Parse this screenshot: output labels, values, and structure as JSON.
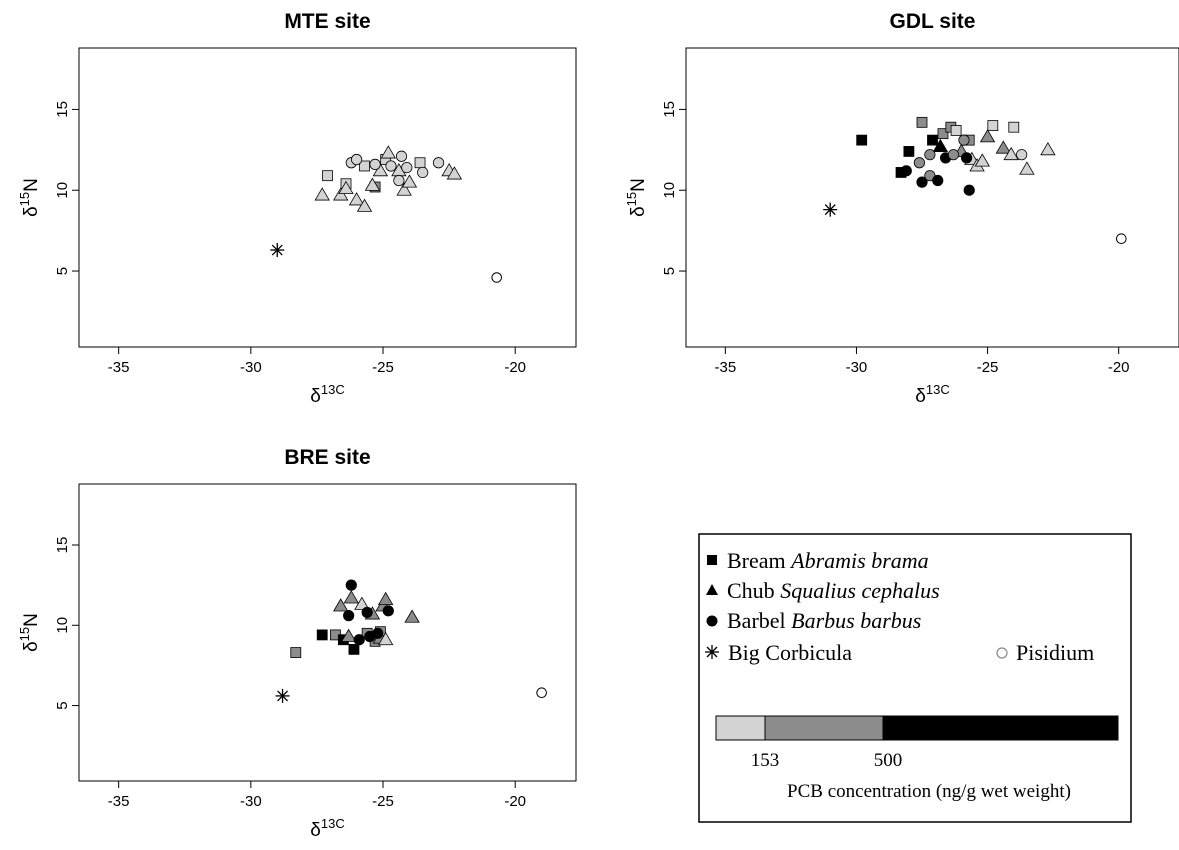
{
  "chart_data": [
    {
      "type": "scatter",
      "title": "MTE site",
      "xlabel": "δ13C",
      "ylabel": "δ15N",
      "xlim": [
        -36.5,
        -17.7
      ],
      "ylim": [
        0.3,
        18.8
      ],
      "xticks": [
        "-35",
        "-30",
        "-25",
        "-20"
      ],
      "yticks": [
        "5",
        "10",
        "15"
      ],
      "points": [
        {
          "species": "bream",
          "conc": "low",
          "x": -27.1,
          "y": 10.9
        },
        {
          "species": "bream",
          "conc": "low",
          "x": -26.4,
          "y": 10.4
        },
        {
          "species": "bream",
          "conc": "mid",
          "x": -25.3,
          "y": 10.2
        },
        {
          "species": "bream",
          "conc": "low",
          "x": -25.7,
          "y": 11.5
        },
        {
          "species": "bream",
          "conc": "low",
          "x": -24.9,
          "y": 11.9
        },
        {
          "species": "bream",
          "conc": "low",
          "x": -23.6,
          "y": 11.7
        },
        {
          "species": "chub",
          "conc": "low",
          "x": -27.3,
          "y": 9.7
        },
        {
          "species": "chub",
          "conc": "low",
          "x": -26.6,
          "y": 9.7
        },
        {
          "species": "chub",
          "conc": "low",
          "x": -26.4,
          "y": 10.1
        },
        {
          "species": "chub",
          "conc": "low",
          "x": -26.0,
          "y": 9.4
        },
        {
          "species": "chub",
          "conc": "low",
          "x": -25.7,
          "y": 9.0
        },
        {
          "species": "chub",
          "conc": "low",
          "x": -25.4,
          "y": 10.3
        },
        {
          "species": "chub",
          "conc": "low",
          "x": -25.1,
          "y": 11.2
        },
        {
          "species": "chub",
          "conc": "low",
          "x": -24.8,
          "y": 12.3
        },
        {
          "species": "chub",
          "conc": "low",
          "x": -24.4,
          "y": 11.2
        },
        {
          "species": "chub",
          "conc": "low",
          "x": -24.2,
          "y": 10.0
        },
        {
          "species": "chub",
          "conc": "low",
          "x": -24.0,
          "y": 10.5
        },
        {
          "species": "chub",
          "conc": "low",
          "x": -22.5,
          "y": 11.2
        },
        {
          "species": "chub",
          "conc": "low",
          "x": -22.3,
          "y": 11.0
        },
        {
          "species": "barbel",
          "conc": "low",
          "x": -26.2,
          "y": 11.7
        },
        {
          "species": "barbel",
          "conc": "low",
          "x": -26.0,
          "y": 11.9
        },
        {
          "species": "barbel",
          "conc": "low",
          "x": -25.3,
          "y": 11.6
        },
        {
          "species": "barbel",
          "conc": "low",
          "x": -24.7,
          "y": 11.5
        },
        {
          "species": "barbel",
          "conc": "low",
          "x": -24.4,
          "y": 10.6
        },
        {
          "species": "barbel",
          "conc": "low",
          "x": -24.3,
          "y": 12.1
        },
        {
          "species": "barbel",
          "conc": "low",
          "x": -24.1,
          "y": 11.4
        },
        {
          "species": "barbel",
          "conc": "low",
          "x": -23.5,
          "y": 11.1
        },
        {
          "species": "barbel",
          "conc": "low",
          "x": -22.9,
          "y": 11.7
        },
        {
          "species": "corbicula",
          "conc": "none",
          "x": -29.0,
          "y": 6.3
        },
        {
          "species": "pisidium",
          "conc": "none",
          "x": -20.7,
          "y": 4.6
        }
      ]
    },
    {
      "type": "scatter",
      "title": "GDL site",
      "xlabel": "δ13C",
      "ylabel": "δ15N",
      "xlim": [
        -36.5,
        -17.7
      ],
      "ylim": [
        0.3,
        18.8
      ],
      "xticks": [
        "-35",
        "-30",
        "-25",
        "-20"
      ],
      "yticks": [
        "5",
        "10",
        "15"
      ],
      "points": [
        {
          "species": "bream",
          "conc": "high",
          "x": -29.8,
          "y": 13.1
        },
        {
          "species": "bream",
          "conc": "high",
          "x": -28.0,
          "y": 12.4
        },
        {
          "species": "bream",
          "conc": "high",
          "x": -28.3,
          "y": 11.1
        },
        {
          "species": "bream",
          "conc": "mid",
          "x": -27.5,
          "y": 14.2
        },
        {
          "species": "bream",
          "conc": "high",
          "x": -27.1,
          "y": 13.1
        },
        {
          "species": "bream",
          "conc": "mid",
          "x": -26.7,
          "y": 13.5
        },
        {
          "species": "bream",
          "conc": "mid",
          "x": -26.4,
          "y": 13.9
        },
        {
          "species": "bream",
          "conc": "low",
          "x": -26.2,
          "y": 13.7
        },
        {
          "species": "bream",
          "conc": "mid",
          "x": -25.7,
          "y": 13.1
        },
        {
          "species": "bream",
          "conc": "low",
          "x": -24.8,
          "y": 14.0
        },
        {
          "species": "bream",
          "conc": "low",
          "x": -24.0,
          "y": 13.9
        },
        {
          "species": "chub",
          "conc": "high",
          "x": -26.8,
          "y": 12.7
        },
        {
          "species": "chub",
          "conc": "mid",
          "x": -26.0,
          "y": 12.4
        },
        {
          "species": "chub",
          "conc": "low",
          "x": -25.6,
          "y": 11.9
        },
        {
          "species": "chub",
          "conc": "low",
          "x": -25.4,
          "y": 11.5
        },
        {
          "species": "chub",
          "conc": "mid",
          "x": -25.0,
          "y": 13.3
        },
        {
          "species": "chub",
          "conc": "mid",
          "x": -24.4,
          "y": 12.6
        },
        {
          "species": "chub",
          "conc": "low",
          "x": -24.1,
          "y": 12.2
        },
        {
          "species": "chub",
          "conc": "low",
          "x": -23.5,
          "y": 11.3
        },
        {
          "species": "chub",
          "conc": "low",
          "x": -22.7,
          "y": 12.5
        },
        {
          "species": "chub",
          "conc": "low",
          "x": -25.2,
          "y": 11.8
        },
        {
          "species": "barbel",
          "conc": "high",
          "x": -28.1,
          "y": 11.2
        },
        {
          "species": "barbel",
          "conc": "mid",
          "x": -27.6,
          "y": 11.7
        },
        {
          "species": "barbel",
          "conc": "high",
          "x": -27.5,
          "y": 10.5
        },
        {
          "species": "barbel",
          "conc": "mid",
          "x": -27.2,
          "y": 12.2
        },
        {
          "species": "barbel",
          "conc": "mid",
          "x": -27.2,
          "y": 10.9
        },
        {
          "species": "barbel",
          "conc": "high",
          "x": -26.9,
          "y": 10.6
        },
        {
          "species": "barbel",
          "conc": "high",
          "x": -26.6,
          "y": 12.0
        },
        {
          "species": "barbel",
          "conc": "mid",
          "x": -26.3,
          "y": 12.2
        },
        {
          "species": "barbel",
          "conc": "high",
          "x": -25.8,
          "y": 12.0
        },
        {
          "species": "barbel",
          "conc": "high",
          "x": -25.7,
          "y": 10.0
        },
        {
          "species": "barbel",
          "conc": "mid",
          "x": -25.9,
          "y": 13.1
        },
        {
          "species": "barbel",
          "conc": "low",
          "x": -23.7,
          "y": 12.2
        },
        {
          "species": "corbicula",
          "conc": "none",
          "x": -31.0,
          "y": 8.8
        },
        {
          "species": "pisidium",
          "conc": "none",
          "x": -19.9,
          "y": 7.0
        }
      ]
    },
    {
      "type": "scatter",
      "title": "BRE site",
      "xlabel": "δ13C",
      "ylabel": "δ15N",
      "xlim": [
        -36.5,
        -17.7
      ],
      "ylim": [
        0.3,
        18.8
      ],
      "xticks": [
        "-35",
        "-30",
        "-25",
        "-20"
      ],
      "yticks": [
        "5",
        "10",
        "15"
      ],
      "points": [
        {
          "species": "bream",
          "conc": "mid",
          "x": -28.3,
          "y": 8.3
        },
        {
          "species": "bream",
          "conc": "high",
          "x": -27.3,
          "y": 9.4
        },
        {
          "species": "bream",
          "conc": "mid",
          "x": -26.8,
          "y": 9.4
        },
        {
          "species": "bream",
          "conc": "high",
          "x": -26.5,
          "y": 9.1
        },
        {
          "species": "bream",
          "conc": "high",
          "x": -26.1,
          "y": 8.5
        },
        {
          "species": "bream",
          "conc": "mid",
          "x": -25.6,
          "y": 9.5
        },
        {
          "species": "bream",
          "conc": "mid",
          "x": -25.3,
          "y": 9.0
        },
        {
          "species": "bream",
          "conc": "mid",
          "x": -25.1,
          "y": 9.6
        },
        {
          "species": "chub",
          "conc": "mid",
          "x": -26.6,
          "y": 11.2
        },
        {
          "species": "chub",
          "conc": "mid",
          "x": -26.2,
          "y": 11.7
        },
        {
          "species": "chub",
          "conc": "low",
          "x": -25.8,
          "y": 11.3
        },
        {
          "species": "chub",
          "conc": "mid",
          "x": -25.4,
          "y": 10.7
        },
        {
          "species": "chub",
          "conc": "mid",
          "x": -25.0,
          "y": 11.2
        },
        {
          "species": "chub",
          "conc": "mid",
          "x": -24.9,
          "y": 11.6
        },
        {
          "species": "chub",
          "conc": "mid",
          "x": -25.1,
          "y": 9.2
        },
        {
          "species": "chub",
          "conc": "low",
          "x": -24.9,
          "y": 9.1
        },
        {
          "species": "chub",
          "conc": "mid",
          "x": -23.9,
          "y": 10.5
        },
        {
          "species": "chub",
          "conc": "mid",
          "x": -26.3,
          "y": 9.3
        },
        {
          "species": "barbel",
          "conc": "high",
          "x": -26.2,
          "y": 12.5
        },
        {
          "species": "barbel",
          "conc": "high",
          "x": -26.3,
          "y": 10.6
        },
        {
          "species": "barbel",
          "conc": "high",
          "x": -25.6,
          "y": 10.8
        },
        {
          "species": "barbel",
          "conc": "high",
          "x": -24.8,
          "y": 10.9
        },
        {
          "species": "barbel",
          "conc": "high",
          "x": -25.9,
          "y": 9.1
        },
        {
          "species": "barbel",
          "conc": "high",
          "x": -25.5,
          "y": 9.3
        },
        {
          "species": "barbel",
          "conc": "high",
          "x": -25.2,
          "y": 9.5
        },
        {
          "species": "corbicula",
          "conc": "none",
          "x": -28.8,
          "y": 5.6
        },
        {
          "species": "pisidium",
          "conc": "none",
          "x": -19.0,
          "y": 5.8
        }
      ]
    }
  ],
  "legend": {
    "bream_common": "Bream",
    "bream_latin": "Abramis brama",
    "chub_common": "Chub",
    "chub_latin": "Squalius cephalus",
    "barbel_common": "Barbel",
    "barbel_latin": "Barbus barbus",
    "corbicula": "Big Corbicula",
    "pisidium": "Pisidium",
    "colorbar_tick1": "153",
    "colorbar_tick2": "500",
    "colorbar_label": "PCB concentration (ng/g wet weight)"
  },
  "colors": {
    "low": "#d3d3d3",
    "mid": "#8c8c8c",
    "high": "#000000",
    "none": "#ffffff"
  }
}
